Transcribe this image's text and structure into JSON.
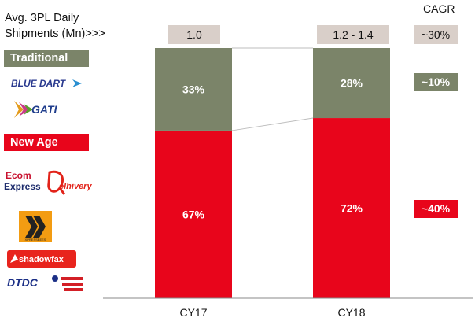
{
  "header": {
    "title_line1": "Avg. 3PL Daily",
    "title_line2": "Shipments (Mn)>>>",
    "cagr_label": "CAGR"
  },
  "shipments": {
    "cy17": "1.0",
    "cy18": "1.2 - 1.4",
    "cagr_total": "~30%"
  },
  "segments": {
    "traditional": {
      "label": "Traditional",
      "cagr": "~10%",
      "color": "#7b8469"
    },
    "new_age": {
      "label": "New Age",
      "cagr": "~40%",
      "color": "#e8051b"
    }
  },
  "logos": {
    "bluedart": "BLUE DART",
    "gati": "GATI",
    "ecom_1": "Ecom",
    "ecom_2": "Express",
    "delhivery": "elhivery",
    "xpressbees": "XPRESSBEES",
    "shadowfax": "shadowfax",
    "dtdc": "DTDC"
  },
  "chart_data": {
    "type": "bar",
    "stacked": true,
    "percent_stacked": true,
    "categories": [
      "CY17",
      "CY18"
    ],
    "series": [
      {
        "name": "New Age",
        "values": [
          67,
          72
        ],
        "labels": [
          "67%",
          "72%"
        ],
        "color": "#e8051b"
      },
      {
        "name": "Traditional",
        "values": [
          33,
          28
        ],
        "labels": [
          "33%",
          "28%"
        ],
        "color": "#7b8469"
      }
    ],
    "ylim": [
      0,
      100
    ]
  }
}
